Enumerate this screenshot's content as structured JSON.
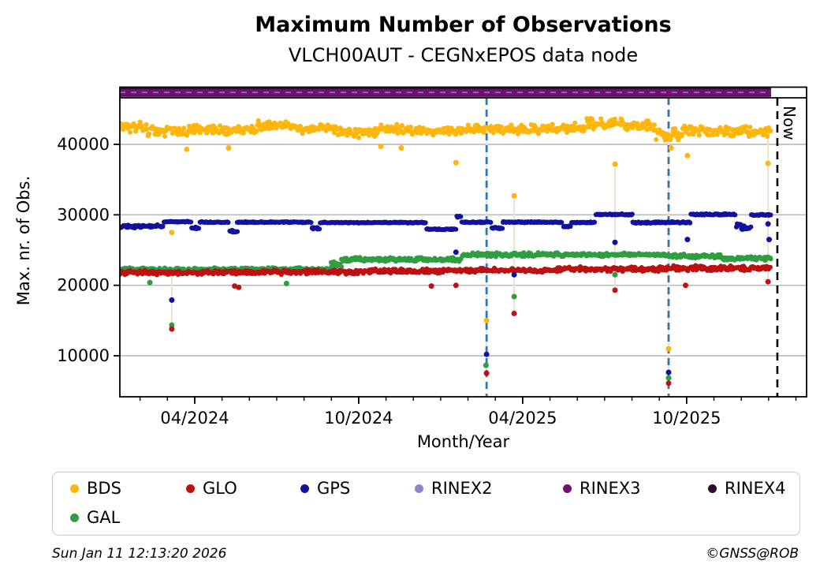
{
  "title": "Maximum Number of Observations",
  "subtitle": "VLCH00AUT - CEGNxEPOS data node",
  "footer": {
    "timestamp": "Sun Jan 11 12:13:20 2026",
    "credit": "©GNSS@ROB"
  },
  "chart_data": {
    "type": "scatter",
    "title": "Maximum Number of Observations",
    "subtitle": "VLCH00AUT - CEGNxEPOS data node",
    "xlabel": "Month/Year",
    "ylabel": "Max. nr. of Obs.",
    "grid": true,
    "legend_position": "bottom",
    "x_axis": {
      "unit": "months-from-2024-01-13",
      "range": [
        0,
        25.13
      ],
      "tick_months": [
        2.74,
        8.74,
        14.74,
        20.74
      ],
      "tick_labels": [
        "04/2024",
        "10/2024",
        "04/2025",
        "10/2025"
      ],
      "minor_tick_start": 0.74,
      "minor_tick_step": 1,
      "minor_tick_count": 25
    },
    "y_axis": {
      "range": [
        4100,
        46600
      ],
      "ticks": [
        10000,
        20000,
        30000,
        40000
      ]
    },
    "now_line": {
      "month": 24.06,
      "label": "Now"
    },
    "event_lines_months": [
      13.42,
      20.08
    ],
    "data_end_month": 23.83,
    "colors": {
      "BDS": "#FEB60D",
      "GLO": "#BE1111",
      "GPS": "#12129F",
      "GAL": "#2F9E41",
      "RINEX2": "#8C86CE",
      "RINEX3": "#740E74",
      "RINEX4": "#2B0A2E",
      "event_line": "#2E75B6",
      "now_line": "#000000",
      "grid": "#b4b4b4",
      "connector": "#EAE3D6"
    },
    "rinex_bar": {
      "start_month": 0,
      "end_month": 23.83,
      "base_series": "RINEX4",
      "fill_series": "RINEX3",
      "dash_series": "RINEX2",
      "approx_value": 47000
    },
    "draw_order": [
      "GAL",
      "GLO",
      "GPS",
      "BDS"
    ],
    "points_per_month": 31,
    "series": [
      {
        "name": "BDS",
        "segments": [
          [
            0,
            1,
            42500,
            900
          ],
          [
            1,
            2.5,
            41900,
            900
          ],
          [
            2.5,
            5,
            42100,
            800
          ],
          [
            5,
            6.5,
            42600,
            800
          ],
          [
            6.5,
            8,
            42200,
            800
          ],
          [
            8,
            9.5,
            41700,
            900
          ],
          [
            9.5,
            11,
            42100,
            750
          ],
          [
            11,
            12.5,
            41900,
            700
          ],
          [
            12.5,
            14,
            42200,
            700
          ],
          [
            14,
            15.5,
            42100,
            800
          ],
          [
            15.5,
            17,
            42400,
            800
          ],
          [
            17,
            18.5,
            42900,
            950
          ],
          [
            18.5,
            19.6,
            42500,
            1100
          ],
          [
            19.6,
            20.6,
            41300,
            1100
          ],
          [
            20.6,
            22,
            42000,
            900
          ],
          [
            22,
            23.83,
            41800,
            850
          ]
        ],
        "outliers": [
          [
            1.9,
            27500
          ],
          [
            2.45,
            39300
          ],
          [
            3.98,
            39500
          ],
          [
            9.55,
            39700
          ],
          [
            10.3,
            39500
          ],
          [
            12.3,
            37400
          ],
          [
            13.42,
            15000
          ],
          [
            14.43,
            32700
          ],
          [
            18.12,
            37200
          ],
          [
            20.08,
            11000
          ],
          [
            20.17,
            39500
          ],
          [
            20.77,
            38400
          ],
          [
            23.72,
            37300
          ]
        ]
      },
      {
        "name": "GLO",
        "segments": [
          [
            0,
            3,
            21800,
            350
          ],
          [
            3,
            6,
            21850,
            350
          ],
          [
            6,
            9,
            21900,
            350
          ],
          [
            9,
            12,
            22000,
            350
          ],
          [
            12,
            16,
            22150,
            350
          ],
          [
            16,
            20,
            22300,
            360
          ],
          [
            20,
            23.83,
            22450,
            400
          ]
        ],
        "outliers": [
          [
            1.9,
            13800
          ],
          [
            4.2,
            19900
          ],
          [
            4.35,
            19700
          ],
          [
            11.4,
            19900
          ],
          [
            12.3,
            20000
          ],
          [
            13.42,
            7530
          ],
          [
            14.43,
            16000
          ],
          [
            18.12,
            19300
          ],
          [
            20.08,
            6100
          ],
          [
            20.7,
            20000
          ],
          [
            23.72,
            20500
          ]
        ]
      },
      {
        "name": "GPS",
        "segments": [
          [
            0,
            1.6,
            28350,
            250
          ],
          [
            1.6,
            2.6,
            29000,
            90
          ],
          [
            2.6,
            2.9,
            28150,
            150
          ],
          [
            2.9,
            4.0,
            28950,
            90
          ],
          [
            4.0,
            4.3,
            27650,
            200
          ],
          [
            4.3,
            7.0,
            28950,
            90
          ],
          [
            7.0,
            7.3,
            28100,
            150
          ],
          [
            7.3,
            11.2,
            28900,
            90
          ],
          [
            11.2,
            12.3,
            27950,
            110
          ],
          [
            12.3,
            12.5,
            29750,
            120
          ],
          [
            12.5,
            13.6,
            28950,
            90
          ],
          [
            13.6,
            14.0,
            28100,
            160
          ],
          [
            14.0,
            16.2,
            28950,
            90
          ],
          [
            16.2,
            16.5,
            28350,
            150
          ],
          [
            16.5,
            17.4,
            28900,
            110
          ],
          [
            17.4,
            18.75,
            30050,
            110
          ],
          [
            18.75,
            20.9,
            28900,
            130
          ],
          [
            20.9,
            22.55,
            30050,
            110
          ],
          [
            22.55,
            23.1,
            28200,
            700
          ],
          [
            23.1,
            23.83,
            30000,
            110
          ]
        ],
        "outliers": [
          [
            1.9,
            17900
          ],
          [
            12.3,
            24700
          ],
          [
            13.42,
            10200
          ],
          [
            14.43,
            21500
          ],
          [
            18.12,
            26100
          ],
          [
            20.08,
            7650
          ],
          [
            20.77,
            26500
          ],
          [
            23.72,
            28700
          ],
          [
            23.76,
            26500
          ]
        ]
      },
      {
        "name": "GAL",
        "segments": [
          [
            0,
            7.7,
            22250,
            300
          ],
          [
            7.7,
            8.1,
            23000,
            450
          ],
          [
            8.1,
            12.5,
            23650,
            330
          ],
          [
            12.5,
            20,
            24350,
            320
          ],
          [
            20,
            22,
            24150,
            320
          ],
          [
            22,
            23.83,
            23800,
            350
          ]
        ],
        "outliers": [
          [
            1.1,
            20400
          ],
          [
            1.9,
            14350
          ],
          [
            6.1,
            20250
          ],
          [
            13.4,
            8650
          ],
          [
            14.43,
            18400
          ],
          [
            18.12,
            21500
          ],
          [
            20.08,
            6850
          ]
        ]
      }
    ],
    "connectors": [
      [
        1.9,
        22000,
        13800
      ],
      [
        13.42,
        42000,
        7530
      ],
      [
        14.43,
        33000,
        16000
      ],
      [
        18.12,
        37500,
        19300
      ],
      [
        20.08,
        42000,
        6100
      ],
      [
        23.72,
        40800,
        20500
      ]
    ],
    "legend": {
      "items": [
        {
          "label": "BDS",
          "color": "#FEB60D",
          "x": 22,
          "row": 0
        },
        {
          "label": "GLO",
          "color": "#BE1111",
          "x": 169,
          "row": 0
        },
        {
          "label": "GPS",
          "color": "#12129F",
          "x": 314,
          "row": 0
        },
        {
          "label": "RINEX2",
          "color": "#8C86CE",
          "x": 459,
          "row": 0
        },
        {
          "label": "RINEX3",
          "color": "#740E74",
          "x": 647,
          "row": 0
        },
        {
          "label": "RINEX4",
          "color": "#2B0A2E",
          "x": 831,
          "row": 0
        },
        {
          "label": "GAL",
          "color": "#2F9E41",
          "x": 22,
          "row": 1
        }
      ]
    }
  }
}
